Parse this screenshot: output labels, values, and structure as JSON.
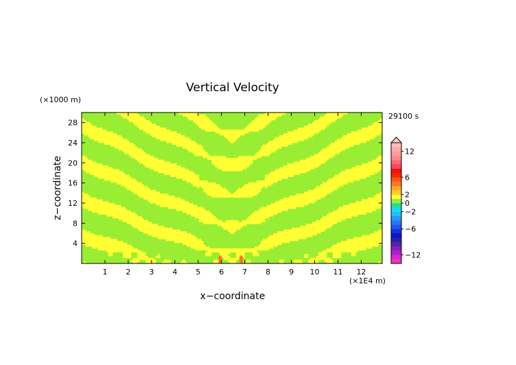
{
  "chart_data": {
    "type": "heatmap",
    "title": "Vertical Velocity",
    "xlabel": "x−coordinate",
    "ylabel": "z−coordinate",
    "x_unit": "(×1E4 m)",
    "y_unit": "(×1000 m)",
    "time_label": "29100 s",
    "xlim": [
      0,
      12.9
    ],
    "ylim": [
      0,
      30
    ],
    "x_ticks": [
      "1",
      "2",
      "3",
      "4",
      "5",
      "6",
      "7",
      "8",
      "9",
      "10",
      "11",
      "12"
    ],
    "y_ticks": [
      "4",
      "8",
      "12",
      "16",
      "20",
      "24",
      "28"
    ],
    "colorbar": {
      "levels": [
        {
          "value": -14,
          "color": "#ff33aa"
        },
        {
          "value": -13,
          "color": "#dd22dd"
        },
        {
          "value": -12,
          "color": "#aa22cc"
        },
        {
          "value": -11,
          "color": "#8822bb"
        },
        {
          "value": -10,
          "color": "#5522aa"
        },
        {
          "value": -9,
          "color": "#2222aa"
        },
        {
          "value": -8,
          "color": "#1111cc"
        },
        {
          "value": -7,
          "color": "#1133dd"
        },
        {
          "value": -6,
          "color": "#2255ee"
        },
        {
          "value": -5,
          "color": "#2277ff"
        },
        {
          "value": -4,
          "color": "#2299ff"
        },
        {
          "value": -3,
          "color": "#22bbff"
        },
        {
          "value": -2,
          "color": "#11ddee"
        },
        {
          "value": -1,
          "color": "#22dd99"
        },
        {
          "value": 0,
          "color": "#99ee33"
        },
        {
          "value": 1,
          "color": "#ffff33"
        },
        {
          "value": 2,
          "color": "#ffcc22"
        },
        {
          "value": 3,
          "color": "#ffaa22"
        },
        {
          "value": 4,
          "color": "#ff7722"
        },
        {
          "value": 5,
          "color": "#ff5511"
        },
        {
          "value": 6,
          "color": "#ff2200"
        },
        {
          "value": 7,
          "color": "#ee1111"
        },
        {
          "value": 8,
          "color": "#ff4455"
        },
        {
          "value": 9,
          "color": "#ff6677"
        },
        {
          "value": 10,
          "color": "#ff8888"
        },
        {
          "value": 11,
          "color": "#ff9999"
        },
        {
          "value": 12,
          "color": "#ffaaaa"
        },
        {
          "value": 13,
          "color": "#ffbbbb"
        }
      ],
      "tick_labels": [
        "12",
        "6",
        "2",
        "0",
        "−2",
        "−6",
        "−12"
      ],
      "tick_values": [
        12,
        6,
        2,
        0,
        -2,
        -6,
        -12
      ]
    },
    "field": {
      "background_color": "#99ee33",
      "positive_color": "#ffff33",
      "strong_color": "#ff7722",
      "hotspots": [
        {
          "x": 5.95,
          "z": 0.8,
          "w": 0.17
        },
        {
          "x": 6.85,
          "z": 0.8,
          "w": 0.17
        }
      ]
    }
  }
}
